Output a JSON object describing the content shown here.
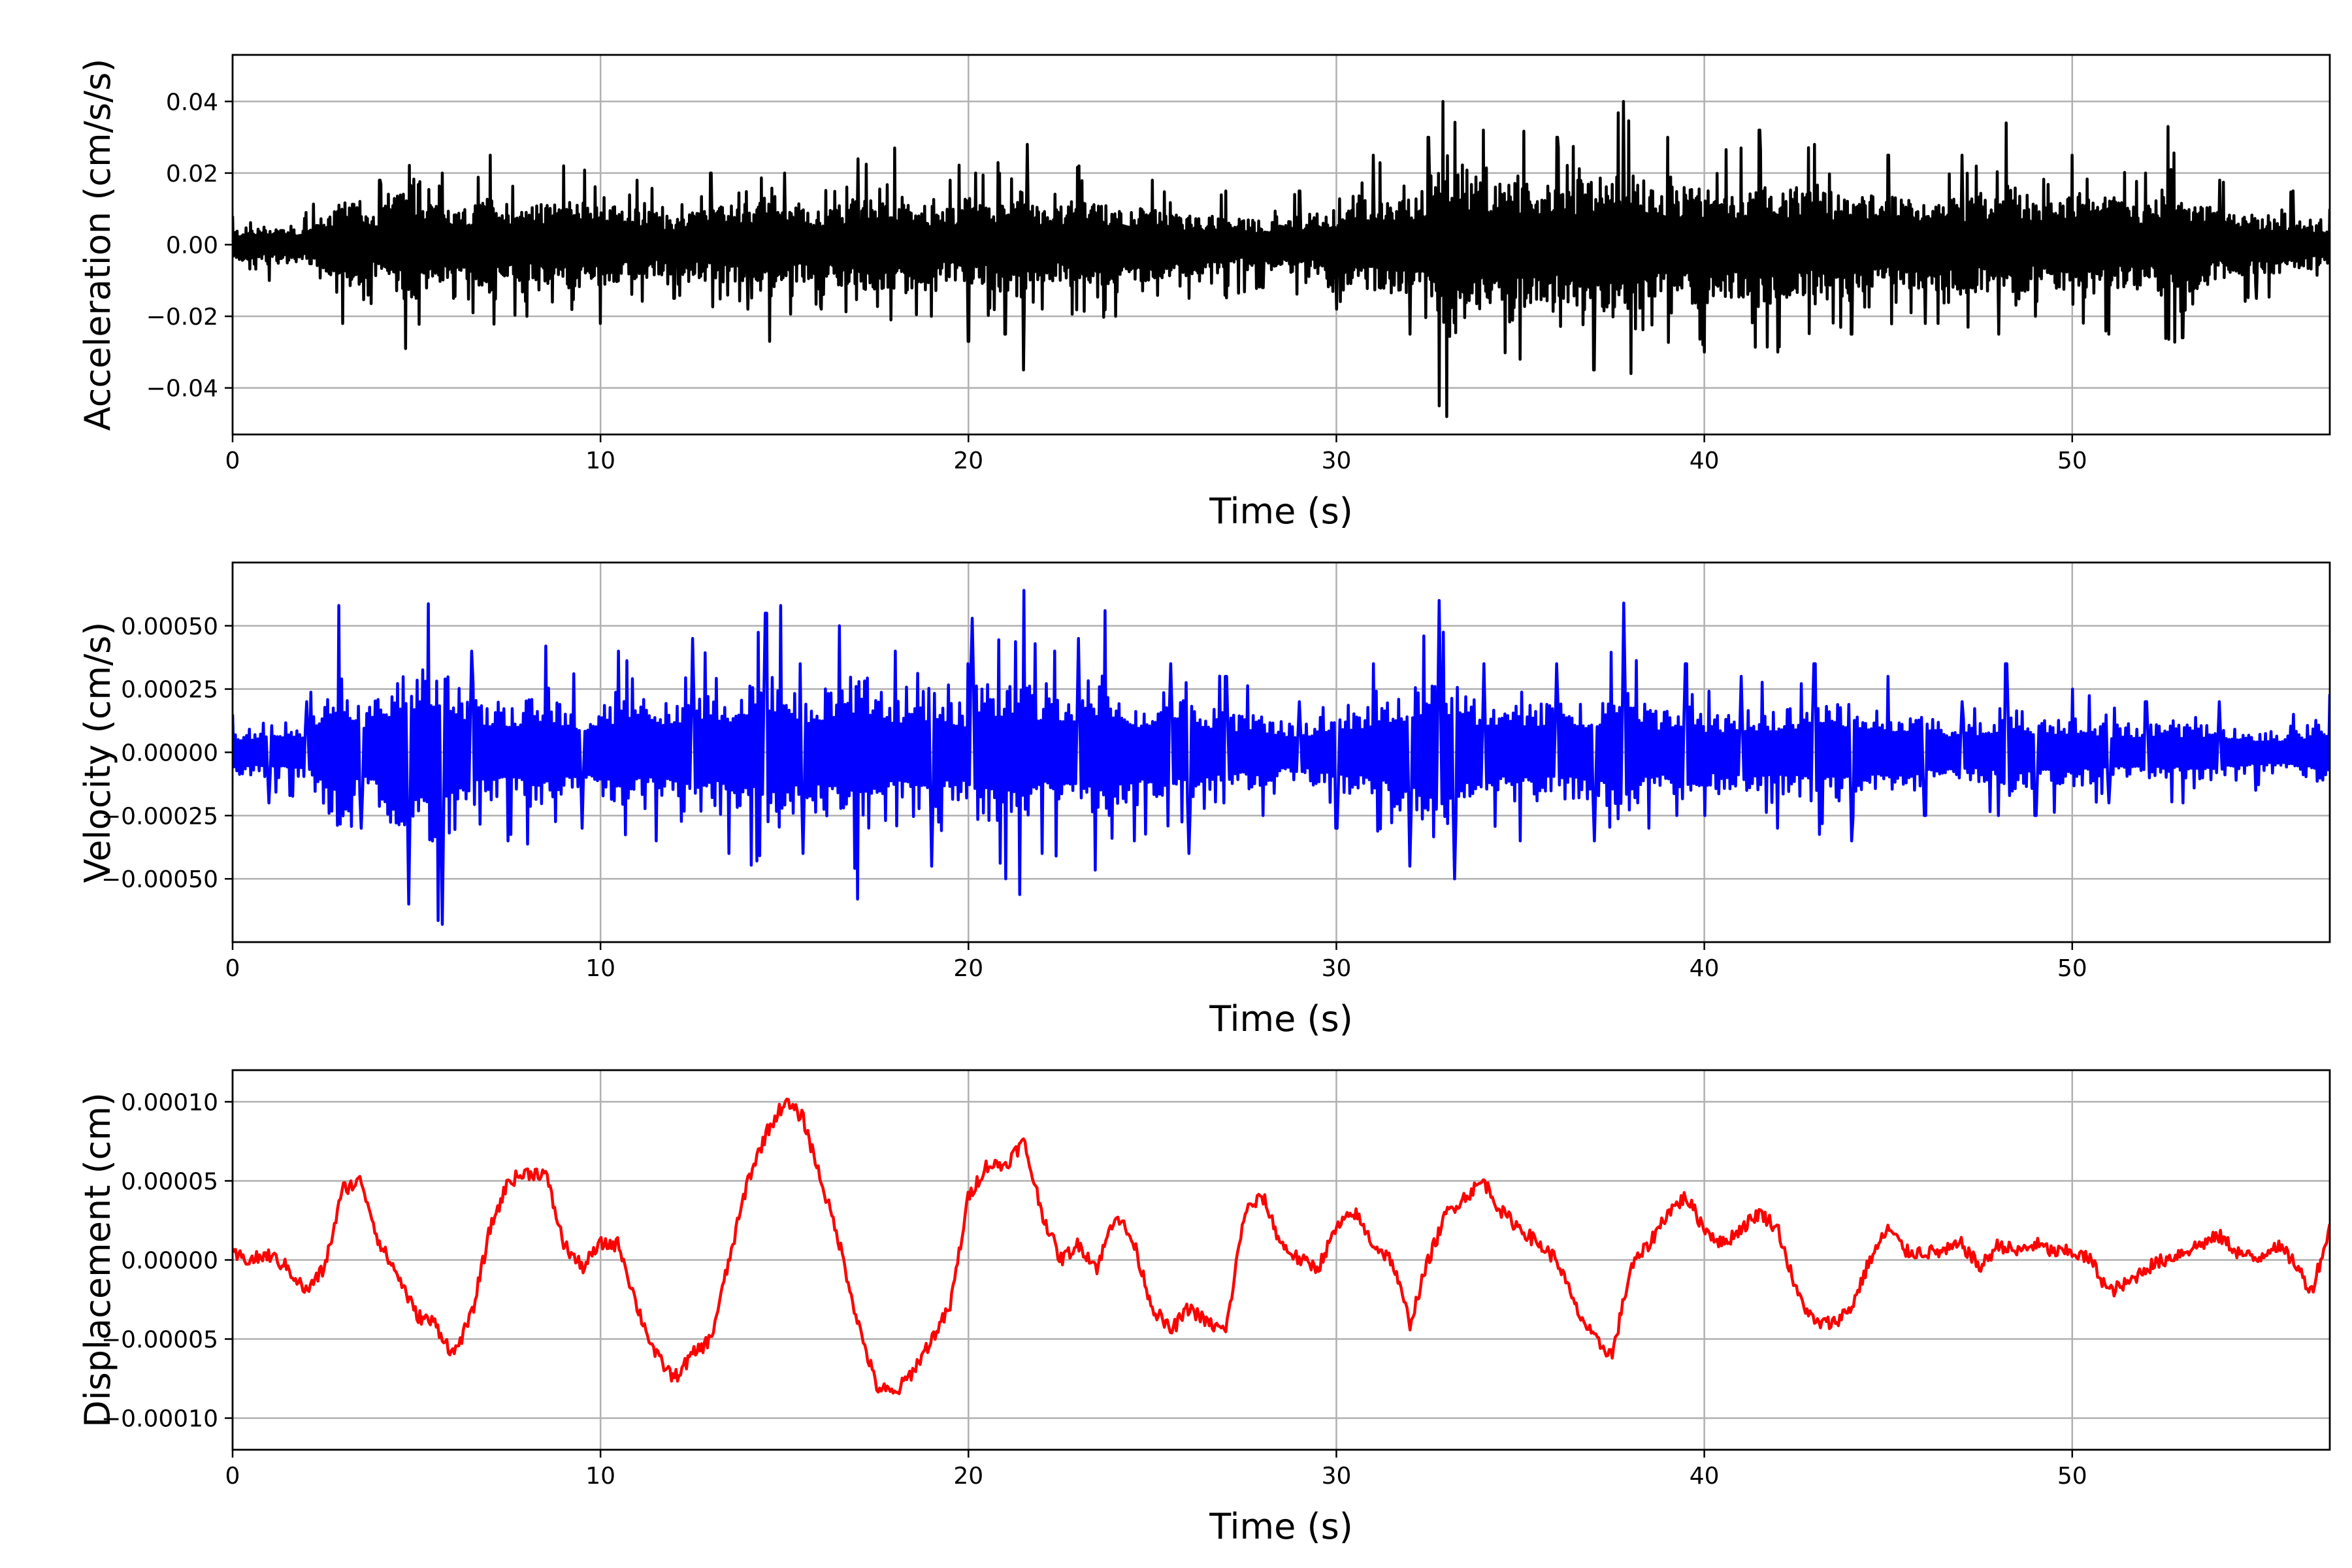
{
  "chart_data": [
    {
      "type": "line",
      "xlabel": "Time (s)",
      "ylabel": "Acceleration (cm/s/s)",
      "xlim": [
        0,
        57
      ],
      "ylim": [
        -0.053,
        0.053
      ],
      "x_ticks": [
        "0",
        "10",
        "20",
        "30",
        "40",
        "50"
      ],
      "y_ticks": [
        "−0.04",
        "−0.02",
        "0.00",
        "0.02",
        "0.04"
      ],
      "grid": true,
      "color": "#000000",
      "series": [
        {
          "x": [
            0,
            1,
            2,
            3,
            4,
            4.7,
            5.7,
            6,
            7,
            8,
            9,
            10,
            11,
            12,
            13,
            14,
            14.6,
            15,
            16,
            17,
            17.9,
            18,
            19,
            19.5,
            20,
            20.2,
            21,
            21.5,
            21.6,
            22,
            23,
            24,
            25,
            26,
            27,
            28,
            29,
            30,
            31,
            32,
            32.5,
            32.8,
            32.9,
            33,
            34,
            35,
            36,
            37,
            37.8,
            38,
            39,
            40,
            41,
            41.5,
            42,
            43,
            44,
            45,
            46,
            47,
            48,
            48.2,
            49,
            50,
            51,
            52,
            52.6,
            53,
            54,
            55,
            56,
            57
          ],
          "y": [
            0.008,
            -0.01,
            0.009,
            -0.022,
            0.018,
            -0.029,
            0.02,
            -0.015,
            0.025,
            -0.02,
            0.022,
            -0.022,
            0.018,
            -0.015,
            0.02,
            -0.018,
            -0.027,
            0.02,
            -0.018,
            0.024,
            -0.021,
            0.027,
            -0.02,
            0.018,
            -0.027,
            0.02,
            -0.025,
            -0.035,
            0.028,
            -0.018,
            0.022,
            -0.02,
            0.018,
            -0.015,
            0.015,
            -0.012,
            0.015,
            -0.018,
            0.025,
            -0.025,
            0.03,
            -0.045,
            0.04,
            -0.048,
            0.032,
            -0.032,
            0.03,
            -0.035,
            0.04,
            -0.036,
            0.03,
            -0.03,
            0.027,
            0.032,
            -0.03,
            0.028,
            -0.025,
            0.025,
            -0.022,
            0.025,
            -0.025,
            0.034,
            -0.02,
            0.025,
            -0.025,
            0.02,
            0.033,
            -0.026,
            0.018,
            -0.015,
            0.015,
            0.01
          ]
        }
      ]
    },
    {
      "type": "line",
      "xlabel": "Time (s)",
      "ylabel": "Velocity (cm/s)",
      "xlim": [
        0,
        57
      ],
      "ylim": [
        -0.00075,
        0.00075
      ],
      "x_ticks": [
        "0",
        "10",
        "20",
        "30",
        "40",
        "50"
      ],
      "y_ticks": [
        "−0.00050",
        "−0.00025",
        "0.00000",
        "0.00025",
        "0.00050"
      ],
      "grid": true,
      "color": "#0000ff",
      "series": [
        {
          "x": [
            0,
            1,
            2,
            2.9,
            3.5,
            4.8,
            5.7,
            6.5,
            7.5,
            8.5,
            9.5,
            10.5,
            11.5,
            12.5,
            13.5,
            14.5,
            14.9,
            15.5,
            16.5,
            17.0,
            18,
            19,
            20,
            20.1,
            21,
            21.5,
            22,
            23,
            23.7,
            24.5,
            25.5,
            26,
            27,
            28,
            29,
            30,
            31,
            32,
            32.8,
            33.2,
            34,
            35,
            36,
            37,
            37.8,
            38.5,
            39.5,
            40,
            41,
            42,
            43,
            44,
            45,
            46,
            47,
            48,
            48.2,
            49,
            50,
            51,
            52,
            53,
            54,
            55,
            56,
            57
          ],
          "y": [
            0.00015,
            -0.0002,
            0.0002,
            0.00058,
            -0.0003,
            -0.0006,
            -0.00068,
            0.0004,
            -0.00035,
            0.00042,
            -0.0003,
            0.0004,
            -0.00035,
            0.00045,
            -0.0004,
            0.00055,
            0.00058,
            -0.0004,
            0.0005,
            -0.00058,
            0.0004,
            -0.00045,
            0.00035,
            0.00053,
            -0.0005,
            0.00064,
            -0.0004,
            0.00045,
            0.00056,
            -0.00035,
            0.00035,
            -0.0004,
            0.0003,
            -0.00025,
            0.0002,
            -0.0003,
            0.00035,
            -0.00045,
            0.0006,
            -0.0005,
            0.00035,
            -0.00035,
            0.00035,
            -0.00035,
            0.00059,
            -0.0003,
            0.00035,
            -0.00025,
            0.0003,
            -0.0003,
            0.00035,
            -0.00035,
            0.0003,
            -0.00025,
            0.0002,
            -0.00025,
            0.00035,
            -0.00025,
            0.00025,
            -0.0002,
            0.0002,
            -0.0002,
            0.0002,
            -0.00015,
            0.00015,
            0.00023
          ]
        }
      ]
    },
    {
      "type": "line",
      "xlabel": "Time (s)",
      "ylabel": "Displacement (cm)",
      "xlim": [
        0,
        57
      ],
      "ylim": [
        -0.00012,
        0.00012
      ],
      "x_ticks": [
        "0",
        "10",
        "20",
        "30",
        "40",
        "50"
      ],
      "y_ticks": [
        "−0.00010",
        "−0.00005",
        "0.00000",
        "0.00005",
        "0.00010"
      ],
      "grid": true,
      "color": "#ff0000",
      "series": [
        {
          "x": [
            0,
            0.5,
            1,
            1.5,
            2,
            2.5,
            3,
            3.5,
            4,
            4.5,
            5,
            5.5,
            6,
            6.5,
            7,
            7.5,
            8,
            8.5,
            9,
            9.5,
            10,
            10.5,
            11,
            11.5,
            12,
            12.5,
            13,
            13.5,
            14,
            14.5,
            15,
            15.5,
            16,
            16.5,
            17,
            17.5,
            18,
            18.5,
            19,
            19.5,
            20,
            20.5,
            21,
            21.5,
            22,
            22.5,
            23,
            23.5,
            24,
            24.5,
            25,
            25.5,
            26,
            26.5,
            27,
            27.5,
            28,
            28.5,
            29,
            29.5,
            30,
            30.5,
            31,
            31.5,
            32,
            32.5,
            33,
            33.5,
            34,
            34.5,
            35,
            35.5,
            36,
            36.5,
            37,
            37.5,
            38,
            38.5,
            39,
            39.5,
            40,
            40.5,
            41,
            41.5,
            42,
            42.5,
            43,
            43.5,
            44,
            44.5,
            45,
            45.5,
            46,
            46.5,
            47,
            47.5,
            48,
            48.5,
            49,
            49.5,
            50,
            50.5,
            51,
            51.5,
            52,
            52.5,
            53,
            53.5,
            54,
            54.5,
            55,
            55.5,
            56,
            56.5,
            57
          ],
          "y": [
            3e-06,
            0.0,
            3e-06,
            -5e-06,
            -2e-05,
            -5e-06,
            4.5e-05,
            5e-05,
            1e-05,
            -1e-05,
            -3.5e-05,
            -4e-05,
            -6e-05,
            -3.5e-05,
            2e-05,
            5e-05,
            5.5e-05,
            5.5e-05,
            1e-05,
            -5e-06,
            1e-05,
            1e-05,
            -3e-05,
            -6e-05,
            -7.5e-05,
            -6e-05,
            -5e-05,
            0.0,
            5e-05,
            8e-05,
            0.0001,
            9e-05,
            5e-05,
            1e-05,
            -4e-05,
            -8e-05,
            -8.5e-05,
            -7e-05,
            -5e-05,
            -3e-05,
            4e-05,
            6e-05,
            6e-05,
            7.5e-05,
            3e-05,
            0.0,
            1e-05,
            -5e-06,
            3e-05,
            1e-05,
            -3e-05,
            -4.5e-05,
            -3e-05,
            -4e-05,
            -4.5e-05,
            3e-05,
            4e-05,
            1e-05,
            0.0,
            -5e-06,
            2e-05,
            3e-05,
            1e-05,
            0.0,
            -4e-05,
            0.0,
            3e-05,
            4e-05,
            5e-05,
            3e-05,
            2e-05,
            1e-05,
            0.0,
            -3e-05,
            -5e-05,
            -6e-05,
            -5e-06,
            1e-05,
            3e-05,
            4e-05,
            2e-05,
            1e-05,
            2e-05,
            3e-05,
            2e-05,
            -2e-05,
            -4e-05,
            -4e-05,
            -3e-05,
            0.0,
            2e-05,
            5e-06,
            5e-06,
            5e-06,
            1e-05,
            -5e-06,
            1e-05,
            5e-06,
            1e-05,
            5e-06,
            5e-06,
            0.0,
            -2e-05,
            -1.5e-05,
            -5e-06,
            0.0,
            5e-06,
            1e-05,
            1.5e-05,
            5e-06,
            0.0,
            1e-05,
            0.0,
            -2e-05,
            2e-05
          ]
        }
      ]
    }
  ]
}
